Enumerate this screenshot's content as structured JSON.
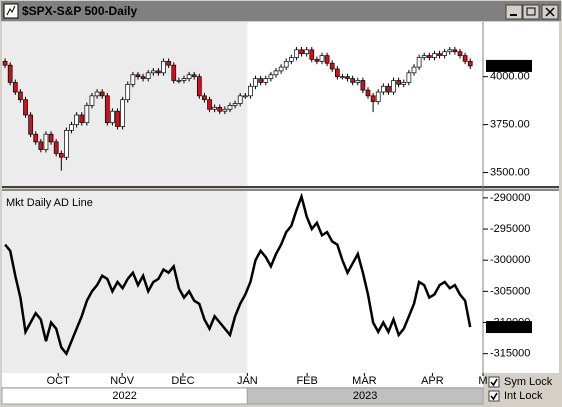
{
  "window": {
    "title": "$SPX-S&P 500-Daily"
  },
  "chart_data": [
    {
      "type": "candlestick",
      "open": [
        4080,
        4060,
        3970,
        3920,
        3880,
        3800,
        3700,
        3660,
        3620,
        3700,
        3660,
        3600,
        3580,
        3720,
        3750,
        3800,
        3760,
        3850,
        3900,
        3920,
        3900,
        3760,
        3820,
        3740,
        3880,
        3960,
        4010,
        4000,
        3990,
        4020,
        4030,
        4020,
        4080,
        4060,
        3980,
        3980,
        3990,
        4010,
        4000,
        3900,
        3880,
        3830,
        3840,
        3820,
        3830,
        3850,
        3860,
        3900,
        3900,
        3950,
        3990,
        3970,
        3990,
        4010,
        4030,
        4050,
        4080,
        4100,
        4140,
        4120,
        4140,
        4090,
        4080,
        4110,
        4070,
        4040,
        4000,
        4000,
        3990,
        3970,
        3980,
        3930,
        3900,
        3870,
        3920,
        3950,
        3920,
        3980,
        3960,
        3970,
        4020,
        4050,
        4100,
        4110,
        4100,
        4120,
        4110,
        4130,
        4140,
        4130,
        4110,
        4080
      ],
      "high": [
        4095,
        4075,
        3985,
        3935,
        3895,
        3815,
        3715,
        3675,
        3715,
        3715,
        3675,
        3615,
        3735,
        3765,
        3815,
        3815,
        3865,
        3915,
        3935,
        3935,
        3915,
        3835,
        3835,
        3895,
        3975,
        4025,
        4025,
        4015,
        4035,
        4045,
        4045,
        4095,
        4095,
        4075,
        3995,
        4005,
        4025,
        4025,
        4015,
        3915,
        3895,
        3855,
        3855,
        3845,
        3865,
        3875,
        3915,
        3915,
        3965,
        4005,
        4005,
        4005,
        4025,
        4045,
        4065,
        4095,
        4115,
        4155,
        4155,
        4155,
        4155,
        4105,
        4125,
        4125,
        4085,
        4055,
        4015,
        4015,
        4005,
        3995,
        3995,
        3945,
        3915,
        3935,
        3965,
        3965,
        3995,
        3995,
        3985,
        4035,
        4065,
        4115,
        4125,
        4125,
        4135,
        4135,
        4145,
        4155,
        4155,
        4145,
        4125,
        4095
      ],
      "low": [
        4045,
        3955,
        3905,
        3865,
        3785,
        3685,
        3645,
        3605,
        3605,
        3645,
        3585,
        3510,
        3565,
        3705,
        3735,
        3745,
        3745,
        3835,
        3885,
        3885,
        3745,
        3745,
        3725,
        3725,
        3865,
        3945,
        3985,
        3975,
        3975,
        4005,
        4005,
        4005,
        4045,
        3965,
        3965,
        3965,
        3975,
        3985,
        3885,
        3865,
        3815,
        3815,
        3805,
        3805,
        3815,
        3835,
        3845,
        3885,
        3885,
        3935,
        3955,
        3955,
        3975,
        3995,
        4015,
        4035,
        4065,
        4085,
        4105,
        4105,
        4075,
        4065,
        4065,
        4055,
        4025,
        3985,
        3985,
        3975,
        3955,
        3955,
        3915,
        3885,
        3815,
        3855,
        3905,
        3905,
        3905,
        3945,
        3945,
        3955,
        4005,
        4035,
        4085,
        4085,
        4085,
        4095,
        4095,
        4115,
        4115,
        4095,
        4065,
        4040
      ],
      "close": [
        4060,
        3970,
        3920,
        3880,
        3800,
        3700,
        3660,
        3620,
        3700,
        3660,
        3600,
        3580,
        3720,
        3750,
        3800,
        3760,
        3850,
        3900,
        3920,
        3900,
        3760,
        3820,
        3740,
        3880,
        3960,
        4010,
        4000,
        3990,
        4020,
        4030,
        4020,
        4080,
        4060,
        3980,
        3980,
        3990,
        4010,
        4000,
        3900,
        3880,
        3830,
        3840,
        3820,
        3830,
        3850,
        3860,
        3900,
        3900,
        3950,
        3990,
        3970,
        3990,
        4010,
        4030,
        4050,
        4080,
        4100,
        4140,
        4120,
        4140,
        4090,
        4080,
        4110,
        4070,
        4040,
        4000,
        4000,
        3990,
        3970,
        3980,
        3930,
        3900,
        3870,
        3920,
        3950,
        3920,
        3980,
        3960,
        3970,
        4020,
        4050,
        4100,
        4110,
        4100,
        4120,
        4110,
        4130,
        4140,
        4130,
        4110,
        4080,
        4055.99
      ],
      "up_color": "#ffffff",
      "down_color": "#c8141e",
      "xlim": [
        -0.6,
        93.5
      ],
      "ylim": [
        3430,
        4285
      ],
      "yticks": [
        {
          "value": 3500,
          "label": "3500.00"
        },
        {
          "value": 3750,
          "label": "3750.00"
        },
        {
          "value": 4000,
          "label": "4000.00"
        }
      ]
    },
    {
      "type": "line",
      "title": "Mkt Daily AD Line",
      "color": "#000000",
      "values": [
        -297500,
        -298500,
        -302500,
        -306000,
        -311500,
        -310000,
        -308500,
        -309500,
        -313000,
        -310000,
        -311000,
        -314000,
        -315000,
        -313000,
        -311000,
        -309000,
        -306500,
        -305000,
        -304000,
        -302500,
        -303000,
        -305000,
        -303500,
        -304500,
        -303000,
        -302000,
        -304000,
        -302500,
        -305000,
        -303500,
        -303000,
        -301500,
        -302000,
        -301000,
        -304500,
        -306000,
        -305000,
        -306500,
        -307000,
        -309500,
        -311000,
        -309000,
        -310000,
        -311000,
        -312000,
        -309000,
        -307000,
        -305500,
        -303500,
        -300000,
        -298500,
        -299500,
        -301000,
        -299000,
        -297500,
        -295500,
        -294500,
        -292000,
        -289800,
        -293000,
        -295000,
        -294000,
        -296000,
        -295500,
        -297000,
        -297500,
        -300000,
        -302000,
        -300500,
        -299000,
        -302000,
        -305500,
        -310000,
        -311500,
        -310000,
        -311500,
        -309500,
        -312000,
        -311000,
        -309000,
        -307000,
        -303500,
        -304000,
        -306000,
        -305500,
        -304000,
        -303500,
        -304500,
        -304000,
        -305500,
        -306500,
        -310728
      ],
      "xlim": [
        -0.6,
        93.5
      ],
      "ylim": [
        -318100,
        -288900
      ],
      "yticks": [
        -290000,
        -295000,
        -300000,
        -305000,
        -310000,
        -315000
      ],
      "xticks": [
        {
          "value": 10.4,
          "label": "OCT"
        },
        {
          "value": 22.9,
          "label": "NOV"
        },
        {
          "value": 34.8,
          "label": "DEC"
        },
        {
          "value": 47.4,
          "label": "JAN"
        },
        {
          "value": 59.1,
          "label": "FEB"
        },
        {
          "value": 70.3,
          "label": "MAR"
        },
        {
          "value": 83.6,
          "label": "APR"
        },
        {
          "value": 93.5,
          "label": "M"
        }
      ]
    }
  ],
  "years": [
    "2022",
    "2023"
  ],
  "controls": [
    {
      "label": "Sym Lock",
      "checked": true
    },
    {
      "label": "Int Lock",
      "checked": true
    }
  ]
}
